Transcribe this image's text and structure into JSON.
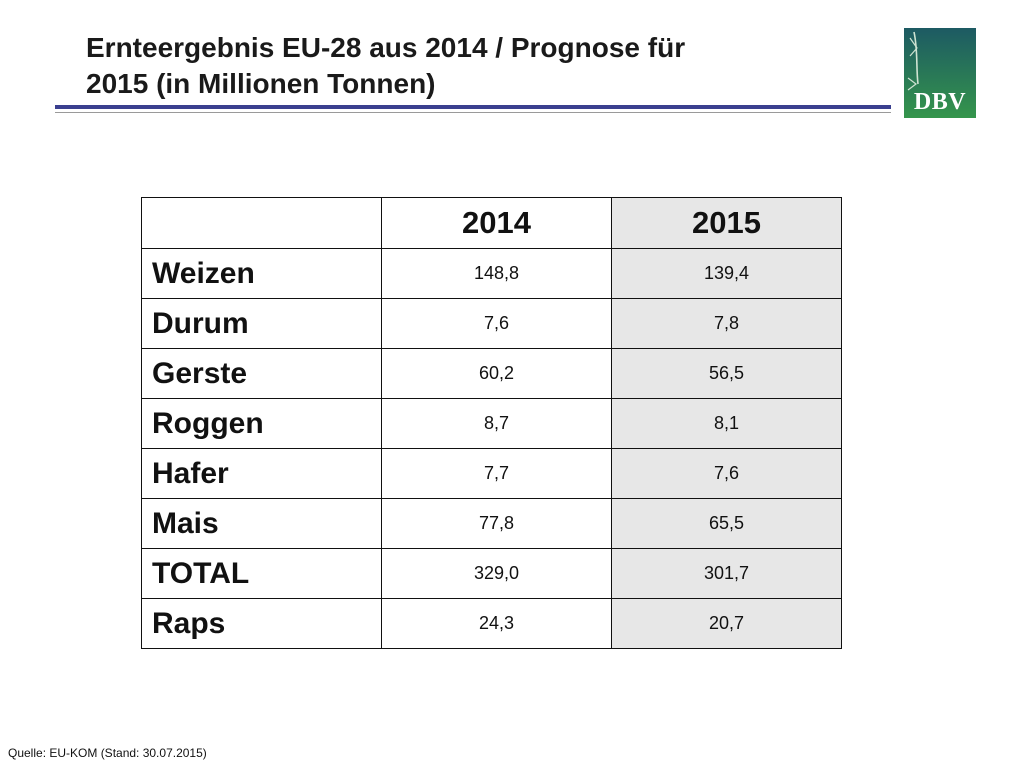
{
  "header": {
    "title_line1": "Ernteergebnis EU-28 aus 2014 / Prognose für",
    "title_line2": "2015 (in Millionen Tonnen)"
  },
  "logo": {
    "text": "DBV"
  },
  "table": {
    "columns": [
      "",
      "2014",
      "2015"
    ],
    "rows": [
      {
        "label": "Weizen",
        "v2014": "148,8",
        "v2015": "139,4"
      },
      {
        "label": "Durum",
        "v2014": "7,6",
        "v2015": "7,8"
      },
      {
        "label": "Gerste",
        "v2014": "60,2",
        "v2015": "56,5"
      },
      {
        "label": "Roggen",
        "v2014": "8,7",
        "v2015": "8,1"
      },
      {
        "label": "Hafer",
        "v2014": "7,7",
        "v2015": "7,6"
      },
      {
        "label": "Mais",
        "v2014": "77,8",
        "v2015": "65,5"
      },
      {
        "label": "TOTAL",
        "v2014": "329,0",
        "v2015": "301,7"
      },
      {
        "label": "Raps",
        "v2014": "24,3",
        "v2015": "20,7"
      }
    ]
  },
  "footer": {
    "source": "Quelle: EU-KOM (Stand: 30.07.2015)"
  },
  "colors": {
    "accent_rule": "#3a3f8f",
    "shaded_column": "#e7e7e7",
    "logo_green": "#2f8a4c"
  }
}
